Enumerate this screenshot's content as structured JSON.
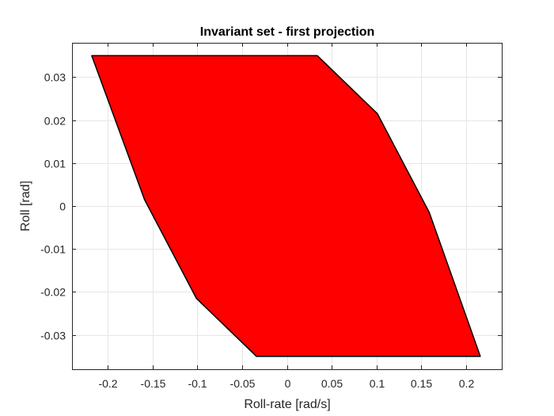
{
  "chart_data": {
    "type": "area",
    "title": "Invariant set - first projection",
    "xlabel": "Roll-rate [rad/s]",
    "ylabel": "Roll [rad]",
    "xlim": [
      -0.24,
      0.24
    ],
    "ylim": [
      -0.038,
      0.038
    ],
    "xticks": [
      -0.2,
      -0.15,
      -0.1,
      -0.05,
      0,
      0.05,
      0.1,
      0.15,
      0.2
    ],
    "xtick_labels": [
      "-0.2",
      "-0.15",
      "-0.1",
      "-0.05",
      "0",
      "0.05",
      "0.1",
      "0.15",
      "0.2"
    ],
    "yticks": [
      -0.03,
      -0.02,
      -0.01,
      0,
      0.01,
      0.02,
      0.03
    ],
    "ytick_labels": [
      "-0.03",
      "-0.02",
      "-0.01",
      "0",
      "0.01",
      "0.02",
      "0.03"
    ],
    "grid": true,
    "box": true,
    "fill_color": "#ff0000",
    "edge_color": "#000000",
    "series": [
      {
        "x": [
          -0.218,
          0.034,
          0.101,
          0.159,
          0.216,
          -0.034,
          -0.101,
          -0.159,
          -0.218
        ],
        "y": [
          0.035,
          0.035,
          0.0215,
          -0.0015,
          -0.035,
          -0.035,
          -0.0215,
          0.0015,
          0.035
        ]
      }
    ]
  }
}
